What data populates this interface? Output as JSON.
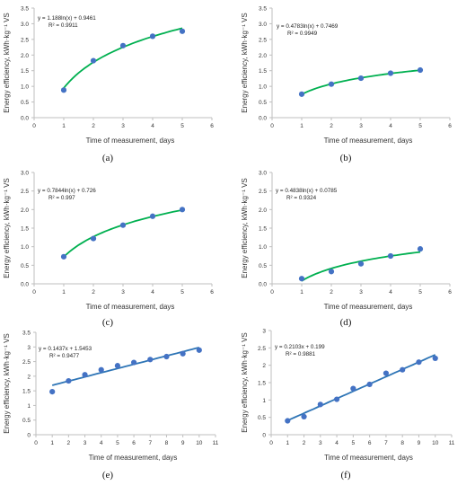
{
  "chart_data": [
    {
      "type": "scatter",
      "panel": "(a)",
      "x": [
        1,
        2,
        3,
        4,
        5
      ],
      "y": [
        0.88,
        1.82,
        2.3,
        2.6,
        2.76
      ],
      "xlim": [
        0,
        6
      ],
      "ylim": [
        0,
        3.5
      ],
      "xticks": [
        0,
        1,
        2,
        3,
        4,
        5,
        6
      ],
      "yticks": [
        "0.0",
        "0.5",
        "1.0",
        "1.5",
        "2.0",
        "2.5",
        "3.0",
        "3.5"
      ],
      "xlabel": "Time of measurement, days",
      "ylabel": "Energy efficiency, kWh·kg⁻¹ VS",
      "trendline": {
        "kind": "log",
        "a": 1.188,
        "b": 0.9461
      },
      "equation": "y = 1.188ln(x) + 0.9461",
      "r2": "R² = 0.9911",
      "trend_color": "#00b050"
    },
    {
      "type": "scatter",
      "panel": "(b)",
      "x": [
        1,
        2,
        3,
        4,
        5
      ],
      "y": [
        0.75,
        1.07,
        1.26,
        1.42,
        1.52
      ],
      "xlim": [
        0,
        6
      ],
      "ylim": [
        0,
        3.5
      ],
      "xticks": [
        0,
        1,
        2,
        3,
        4,
        5,
        6
      ],
      "yticks": [
        "0.0",
        "0.5",
        "1.0",
        "1.5",
        "2.0",
        "2.5",
        "3.0",
        "3.5"
      ],
      "xlabel": "Time of measurement, days",
      "ylabel": "Energy efficiency, kWh·kg⁻¹ VS",
      "trendline": {
        "kind": "log",
        "a": 0.4783,
        "b": 0.7469
      },
      "equation": "y = 0.4783ln(x) + 0.7469",
      "r2": "R² = 0.9949",
      "trend_color": "#00b050"
    },
    {
      "type": "scatter",
      "panel": "(c)",
      "x": [
        1,
        2,
        3,
        4,
        5
      ],
      "y": [
        0.73,
        1.22,
        1.58,
        1.82,
        2.0
      ],
      "xlim": [
        0,
        6
      ],
      "ylim": [
        0,
        3.0
      ],
      "xticks": [
        0,
        1,
        2,
        3,
        4,
        5,
        6
      ],
      "yticks": [
        "0.0",
        "0.5",
        "1.0",
        "1.5",
        "2.0",
        "2.5",
        "3.0"
      ],
      "xlabel": "Time of measurement, days",
      "ylabel": "Energy efficiency, kWh·kg⁻¹ VS",
      "trendline": {
        "kind": "log",
        "a": 0.7844,
        "b": 0.726
      },
      "equation": "y = 0.7844ln(x) + 0.726",
      "r2": "R² = 0.997",
      "trend_color": "#00b050"
    },
    {
      "type": "scatter",
      "panel": "(d)",
      "x": [
        1,
        2,
        3,
        4,
        5
      ],
      "y": [
        0.14,
        0.33,
        0.54,
        0.75,
        0.94
      ],
      "xlim": [
        0,
        6
      ],
      "ylim": [
        0,
        3.0
      ],
      "xticks": [
        0,
        1,
        2,
        3,
        4,
        5,
        6
      ],
      "yticks": [
        "0.0",
        "0.5",
        "1.0",
        "1.5",
        "2.0",
        "2.5",
        "3.0"
      ],
      "xlabel": "Time of measurement, days",
      "ylabel": "Energy efficiency, kWh·kg⁻¹ VS",
      "trendline": {
        "kind": "log",
        "a": 0.4838,
        "b": 0.0785
      },
      "equation": "y = 0.4838ln(x) + 0.0785",
      "r2": "R² = 0.9324",
      "trend_color": "#00b050"
    },
    {
      "type": "scatter",
      "panel": "(e)",
      "x": [
        1,
        2,
        3,
        4,
        5,
        6,
        7,
        8,
        9,
        10
      ],
      "y": [
        1.47,
        1.84,
        2.05,
        2.22,
        2.36,
        2.47,
        2.57,
        2.67,
        2.77,
        2.89
      ],
      "xlim": [
        0,
        11
      ],
      "ylim": [
        0,
        3.5
      ],
      "xticks": [
        0,
        1,
        2,
        3,
        4,
        5,
        6,
        7,
        8,
        9,
        10,
        11
      ],
      "yticks": [
        "0",
        "0.5",
        "1",
        "1.5",
        "2",
        "2.5",
        "3",
        "3.5"
      ],
      "xlabel": "Time of measurement, days",
      "ylabel": "Energy efficiency, kWh·kg⁻¹ VS",
      "trendline": {
        "kind": "linear",
        "a": 0.1437,
        "b": 1.5453
      },
      "equation": "y = 0.1437x + 1.5453",
      "r2": "R² = 0.9477",
      "trend_color": "#2e75b6"
    },
    {
      "type": "scatter",
      "panel": "(f)",
      "x": [
        1,
        2,
        3,
        4,
        5,
        6,
        7,
        8,
        9,
        10
      ],
      "y": [
        0.4,
        0.52,
        0.87,
        1.02,
        1.33,
        1.45,
        1.77,
        1.87,
        2.09,
        2.2
      ],
      "xlim": [
        0,
        11
      ],
      "ylim": [
        0,
        3.0
      ],
      "xticks": [
        0,
        1,
        2,
        3,
        4,
        5,
        6,
        7,
        8,
        9,
        10,
        11
      ],
      "yticks": [
        "0",
        "0.5",
        "1",
        "1.5",
        "2",
        "2.5",
        "3"
      ],
      "xlabel": "Time of measurement, days",
      "ylabel": "Energy efficiency, kWh·kg⁻¹ VS",
      "trendline": {
        "kind": "linear",
        "a": 0.2103,
        "b": 0.199
      },
      "equation": "y = 0.2103x + 0.199",
      "r2": "R² = 0.9881",
      "trend_color": "#2e75b6"
    }
  ],
  "colors": {
    "marker": "#4472c4",
    "axis": "#bfbfbf",
    "text": "#333333"
  }
}
